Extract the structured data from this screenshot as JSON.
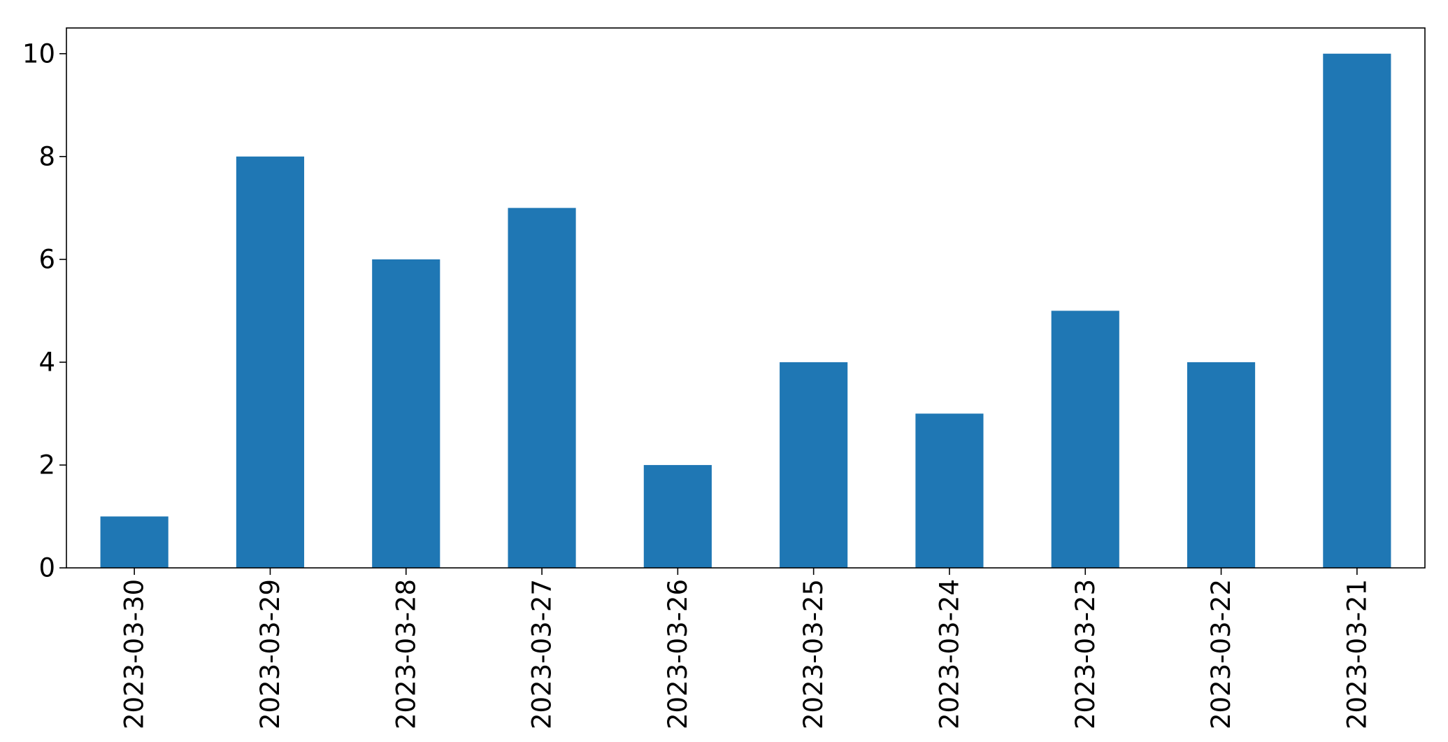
{
  "chart_data": {
    "type": "bar",
    "title": "",
    "xlabel": "",
    "ylabel": "",
    "categories": [
      "2023-03-30",
      "2023-03-29",
      "2023-03-28",
      "2023-03-27",
      "2023-03-26",
      "2023-03-25",
      "2023-03-24",
      "2023-03-23",
      "2023-03-22",
      "2023-03-21"
    ],
    "values": [
      1,
      8,
      6,
      7,
      2,
      4,
      3,
      5,
      4,
      10
    ],
    "ylim": [
      0,
      10.5
    ],
    "yticks": [
      0,
      2,
      4,
      6,
      8,
      10
    ],
    "grid": false,
    "legend": "none",
    "bar_color": "#1f77b4"
  }
}
